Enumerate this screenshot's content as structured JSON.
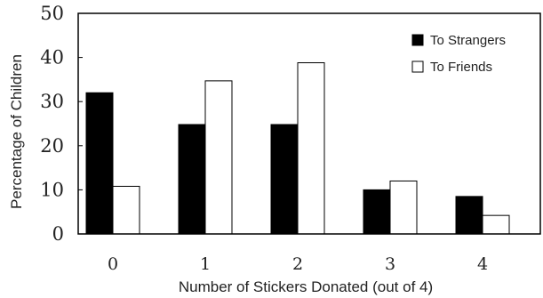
{
  "chart_data": {
    "type": "bar",
    "categories": [
      "0",
      "1",
      "2",
      "3",
      "4"
    ],
    "series": [
      {
        "name": "To Strangers",
        "values": [
          32,
          24.8,
          24.8,
          10,
          8.5
        ],
        "color": "#000000"
      },
      {
        "name": "To Friends",
        "values": [
          10.8,
          34.7,
          38.8,
          12,
          4.2
        ],
        "color": "#ffffff"
      }
    ],
    "xlabel": "Number of Stickers Donated (out of 4)",
    "ylabel": "Percentage of Children",
    "ylim": [
      0,
      50
    ],
    "yticks": [
      "0",
      "10",
      "20",
      "30",
      "40",
      "50"
    ],
    "grid": false,
    "legend_position": "top-right"
  }
}
